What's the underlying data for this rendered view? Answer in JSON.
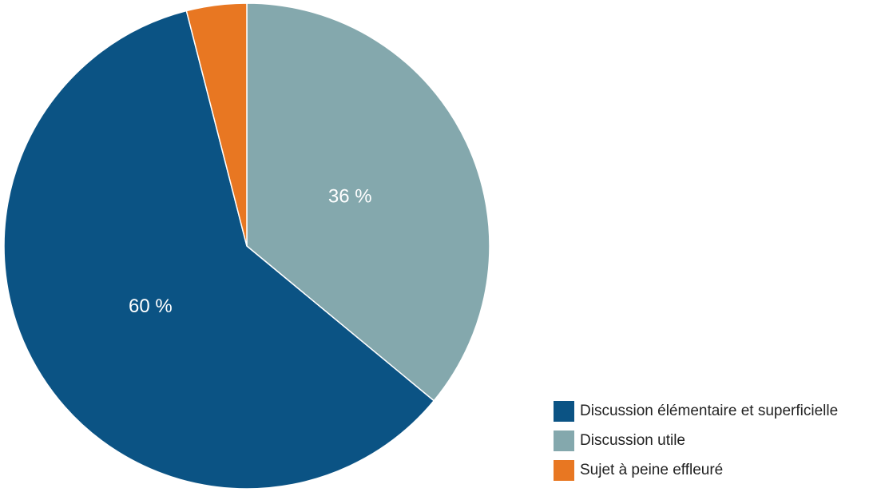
{
  "chart_data": {
    "type": "pie",
    "categories": [
      "Discussion élémentaire et superficielle",
      "Discussion utile",
      "Sujet à peine effleuré"
    ],
    "values": [
      60,
      36,
      4
    ],
    "value_labels": [
      "60 %",
      "36 %",
      null
    ],
    "colors": [
      "#0b5384",
      "#84a8ad",
      "#e87722"
    ],
    "legend": "lower right"
  }
}
